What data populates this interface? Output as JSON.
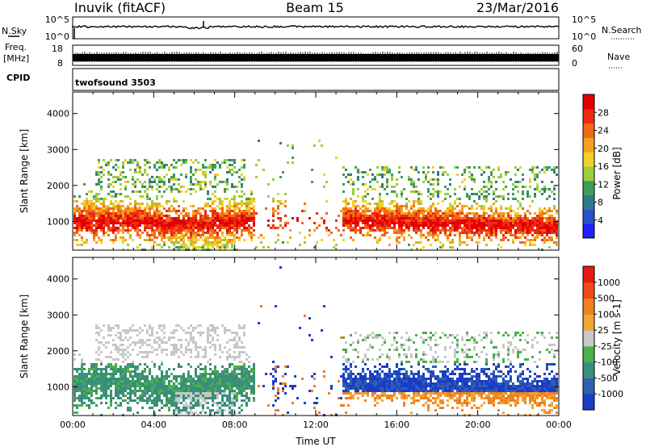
{
  "header": {
    "station": "Inuvik (fitACF)",
    "beam": "Beam 15",
    "date": "23/Mar/2016"
  },
  "strips": {
    "nsky_label": "N.Sky",
    "nsearch_label": "N.Search",
    "freq_label_1": "Freq.",
    "freq_label_2": "[MHz]",
    "nave_label": "Nave",
    "cpid_label": "CPID",
    "cpid_value": "twofsound 3503",
    "left_ticks": [
      "10^5",
      "10^0",
      "18",
      "8"
    ],
    "right_ticks": [
      "10^5",
      "10^0",
      "60",
      "0"
    ]
  },
  "chart_data": [
    {
      "type": "heatmap",
      "name": "power",
      "ylabel": "Slant Range [km]",
      "ylim": [
        200,
        4600
      ],
      "yticks": [
        1000,
        2000,
        3000,
        4000
      ],
      "xlim": [
        0,
        24
      ],
      "colorbar": {
        "label": "Power [dB]",
        "range": [
          0,
          32
        ],
        "ticks": [
          "4",
          "8",
          "12",
          "16",
          "20",
          "24",
          "28"
        ],
        "colors": [
          "#1f1fff",
          "#2b50c8",
          "#2e7a8a",
          "#3f9c5a",
          "#9ccd3b",
          "#f0d028",
          "#f4a020",
          "#f06a14",
          "#ee2a12",
          "#e40000"
        ]
      }
    },
    {
      "type": "heatmap",
      "name": "velocity",
      "ylabel": "Slant Range [km]",
      "ylim": [
        200,
        4600
      ],
      "yticks": [
        1000,
        2000,
        3000,
        4000
      ],
      "xlim": [
        0,
        24
      ],
      "colorbar": {
        "label": "Velocity [m s-1]",
        "ticks": [
          "1000",
          "500",
          "100",
          "25",
          "-25",
          "-100",
          "-500",
          "-1000"
        ],
        "colors": [
          "#1c3cc8",
          "#2e5fb0",
          "#3a8f7a",
          "#4cb04a",
          "#c8c8c8",
          "#f2a430",
          "#f08020",
          "#ee4a14",
          "#e61a10"
        ]
      }
    }
  ],
  "time_axis": {
    "label": "Time UT",
    "ticks": [
      "00:00",
      "04:00",
      "08:00",
      "12:00",
      "16:00",
      "20:00",
      "00:00"
    ]
  }
}
